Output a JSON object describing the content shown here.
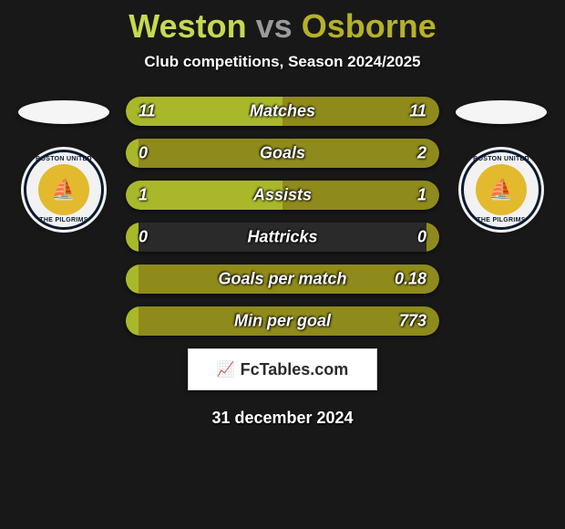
{
  "header": {
    "player1": "Weston",
    "vs": "vs",
    "player2": "Osborne",
    "subtitle": "Club competitions, Season 2024/2025"
  },
  "colors": {
    "player1_fill": "#a9b82b",
    "player2_fill": "#8f8a1c",
    "track_bg": "#2a2a2a",
    "player1_title": "#c7d94f",
    "player2_title": "#b6b128",
    "vs_title": "#9a9a9a",
    "background": "#181818"
  },
  "badge": {
    "top_text": "BOSTON UNITED",
    "bottom_text": "THE PILGRIMS",
    "ship": "⛵"
  },
  "stats": [
    {
      "label": "Matches",
      "left_value": "11",
      "right_value": "11",
      "left_pct": 50,
      "right_pct": 50
    },
    {
      "label": "Goals",
      "left_value": "0",
      "right_value": "2",
      "left_pct": 4,
      "right_pct": 96
    },
    {
      "label": "Assists",
      "left_value": "1",
      "right_value": "1",
      "left_pct": 50,
      "right_pct": 50
    },
    {
      "label": "Hattricks",
      "left_value": "0",
      "right_value": "0",
      "left_pct": 4,
      "right_pct": 4
    },
    {
      "label": "Goals per match",
      "left_value": "",
      "right_value": "0.18",
      "left_pct": 4,
      "right_pct": 96
    },
    {
      "label": "Min per goal",
      "left_value": "",
      "right_value": "773",
      "left_pct": 4,
      "right_pct": 96
    }
  ],
  "footer": {
    "site": "FcTables.com",
    "date": "31 december 2024"
  }
}
